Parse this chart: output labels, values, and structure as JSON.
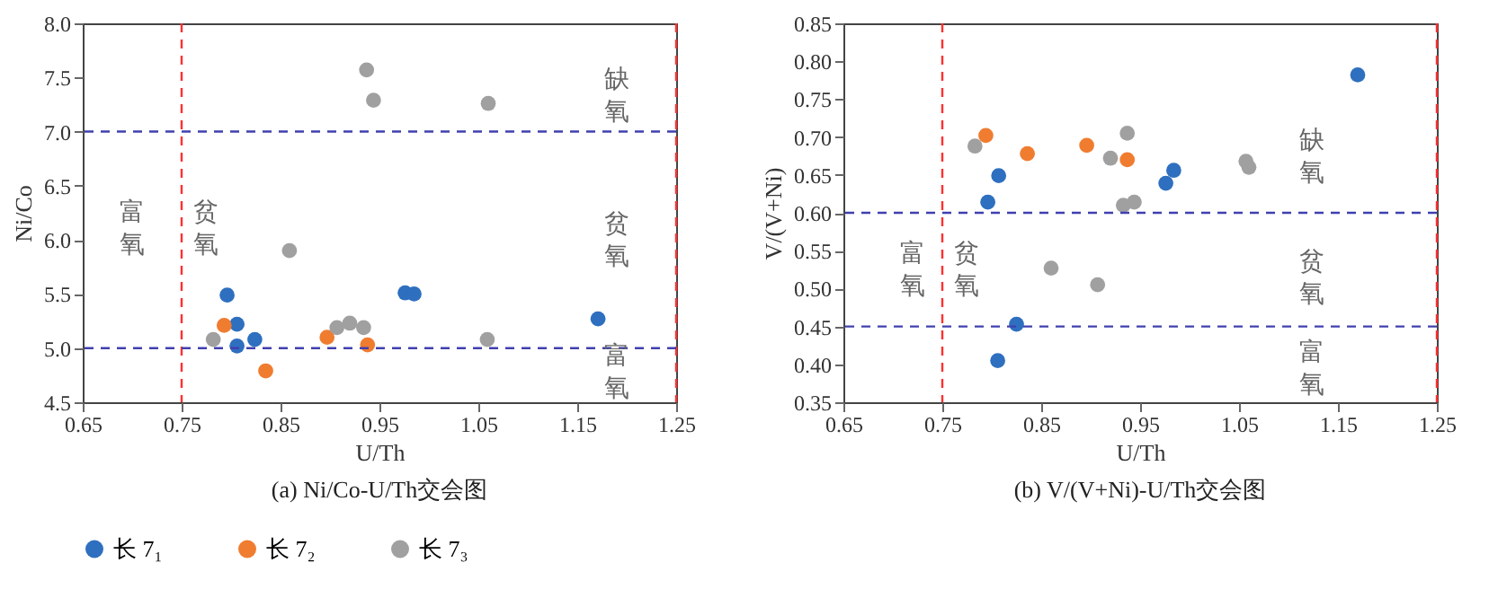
{
  "chart_data": [
    {
      "type": "scatter",
      "title": "(a) Ni/Co-U/Th交会图",
      "xlabel": "U/Th",
      "ylabel": "Ni/Co",
      "marker": "circle",
      "legend": "bottom",
      "grid": false,
      "xlim": [
        0.65,
        1.25
      ],
      "xticks": [
        0.65,
        0.75,
        0.85,
        0.95,
        1.05,
        1.15,
        1.25
      ],
      "ylim": [
        4.5,
        8.0
      ],
      "yticks": [
        {
          "value": 4.5,
          "label": "4.5"
        },
        {
          "value": 5,
          "label": "5.0"
        },
        {
          "value": 5.5,
          "label": "5.5"
        },
        {
          "value": 6,
          "label": "6.0"
        },
        {
          "value": 6.5,
          "label": "6.5"
        },
        {
          "value": 7,
          "label": "7.0"
        },
        {
          "value": 7.5,
          "label": "7.5"
        },
        {
          "value": 8,
          "label": "8.0"
        }
      ],
      "series": [
        {
          "name": "长 7₁",
          "color": "#2e6fbf",
          "x": [
            0.796,
            0.806,
            0.806,
            0.824,
            0.976,
            0.985,
            1.171
          ],
          "values": [
            5.49,
            5.22,
            5.02,
            5.08,
            5.51,
            5.5,
            5.27
          ]
        },
        {
          "name": "长 7₂",
          "color": "#f07c30",
          "x": [
            0.793,
            0.835,
            0.897,
            0.938
          ],
          "values": [
            5.21,
            4.79,
            5.1,
            5.03
          ]
        },
        {
          "name": "长 7₃",
          "color": "#a0a0a0",
          "x": [
            0.937,
            0.944,
            1.06,
            0.859,
            0.782,
            0.907,
            0.92,
            0.934,
            1.059
          ],
          "values": [
            7.57,
            7.29,
            7.26,
            5.9,
            5.08,
            5.19,
            5.23,
            5.19,
            5.08
          ]
        }
      ],
      "ref_lines": [
        {
          "axis": "x",
          "value": 0.75,
          "color": "#ff3030",
          "line_style": "dashed"
        },
        {
          "axis": "x",
          "value": 1.25,
          "color": "#ff3030",
          "line_style": "dashed"
        },
        {
          "axis": "y",
          "value": 5,
          "color": "#4040b0",
          "line_style": "dashed"
        },
        {
          "axis": "y",
          "value": 7,
          "color": "#4040b0",
          "line_style": "dashed"
        }
      ],
      "annotations": [
        "富氧",
        "贫氧",
        "缺氧",
        "贫氧",
        "富氧"
      ]
    },
    {
      "type": "scatter",
      "title": "(b) V/(V+Ni)-U/Th交会图",
      "xlabel": "U/Th",
      "ylabel": "V/(V+Ni)",
      "marker": "circle",
      "legend": "bottom",
      "grid": false,
      "xlim": [
        0.65,
        1.25
      ],
      "xticks": [
        0.65,
        0.75,
        0.85,
        0.95,
        1.05,
        1.15,
        1.25
      ],
      "ylim": [
        0.35,
        0.85
      ],
      "yticks": [
        0.35,
        {
          "value": 0.4,
          "label": "0.40"
        },
        0.45,
        {
          "value": 0.5,
          "label": "0.50"
        },
        0.55,
        {
          "value": 0.6,
          "label": "0.60"
        },
        0.65,
        {
          "value": 0.7,
          "label": "0.70"
        },
        0.75,
        {
          "value": 0.8,
          "label": "0.80"
        },
        0.85
      ],
      "series": [
        {
          "name": "长 7₁",
          "color": "#2e6fbf",
          "x": [
            1.17,
            0.796,
            0.807,
            0.976,
            0.984,
            0.825,
            0.806
          ],
          "values": [
            0.782,
            0.614,
            0.649,
            0.639,
            0.656,
            0.453,
            0.405
          ]
        },
        {
          "name": "长 7₂",
          "color": "#f07c30",
          "x": [
            0.794,
            0.836,
            0.896,
            0.937
          ],
          "values": [
            0.702,
            0.678,
            0.689,
            0.67
          ]
        },
        {
          "name": "长 7₃",
          "color": "#a0a0a0",
          "x": [
            0.783,
            0.92,
            0.937,
            0.933,
            0.944,
            1.057,
            1.06,
            0.86,
            0.907
          ],
          "values": [
            0.688,
            0.672,
            0.705,
            0.61,
            0.614,
            0.668,
            0.66,
            0.527,
            0.505
          ]
        }
      ],
      "ref_lines": [
        {
          "axis": "x",
          "value": 0.75,
          "color": "#ff3030",
          "line_style": "dashed"
        },
        {
          "axis": "x",
          "value": 1.25,
          "color": "#ff3030",
          "line_style": "dashed"
        },
        {
          "axis": "y",
          "value": 0.6,
          "color": "#4040b0",
          "line_style": "dashed"
        },
        {
          "axis": "y",
          "value": 0.45,
          "color": "#4040b0",
          "line_style": "dashed"
        }
      ],
      "annotations": [
        "富氧",
        "贫氧",
        "缺氧",
        "贫氧",
        "富氧"
      ]
    }
  ]
}
